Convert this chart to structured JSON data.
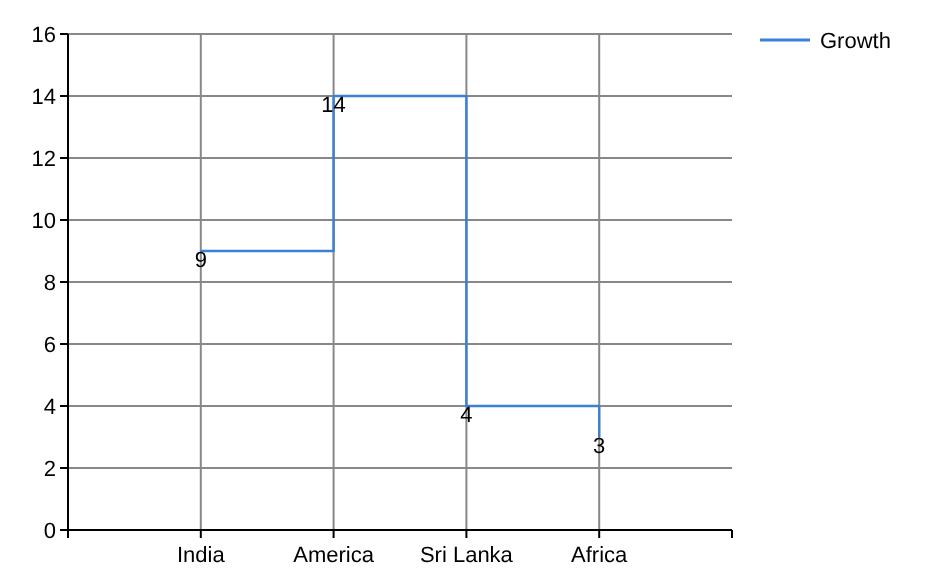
{
  "chart_data": {
    "type": "step",
    "categories": [
      "India",
      "America",
      "Sri Lanka",
      "Africa"
    ],
    "series": [
      {
        "name": "Growth",
        "color": "#3a7fd8",
        "values": [
          9,
          14,
          4,
          3
        ]
      }
    ],
    "ylim": [
      0,
      16
    ],
    "yticks": [
      0,
      2,
      4,
      6,
      8,
      10,
      12,
      14,
      16
    ],
    "grid": true,
    "legend": "top right",
    "data_labels": true
  }
}
